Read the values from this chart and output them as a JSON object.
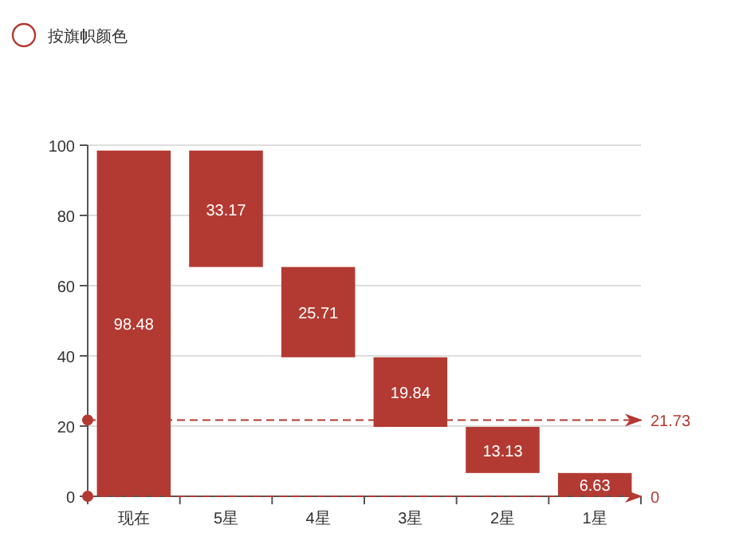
{
  "chart_data": {
    "type": "bar",
    "legend": "top left",
    "grid": "y",
    "data_labels": true,
    "categories": [
      "现在",
      "5星",
      "4星",
      "3星",
      "2星",
      "1星"
    ],
    "series": [
      {
        "name": "按旗帜颜色",
        "color": "#b33a32",
        "values": [
          98.48,
          33.17,
          25.71,
          19.84,
          13.13,
          6.63
        ],
        "base": [
          0,
          65.31,
          39.6,
          19.76,
          6.63,
          0
        ]
      }
    ],
    "ylim": [
      0,
      100
    ],
    "yticks": [
      0,
      20,
      40,
      60,
      80,
      100
    ],
    "ref_lines": [
      {
        "axis": "y",
        "value": 21.73,
        "label": "21.73",
        "color": "#b33a32",
        "line_style": "dashed"
      },
      {
        "axis": "y",
        "value": 0,
        "label": "0",
        "color": "#b33a32",
        "line_style": "dashed"
      }
    ]
  }
}
